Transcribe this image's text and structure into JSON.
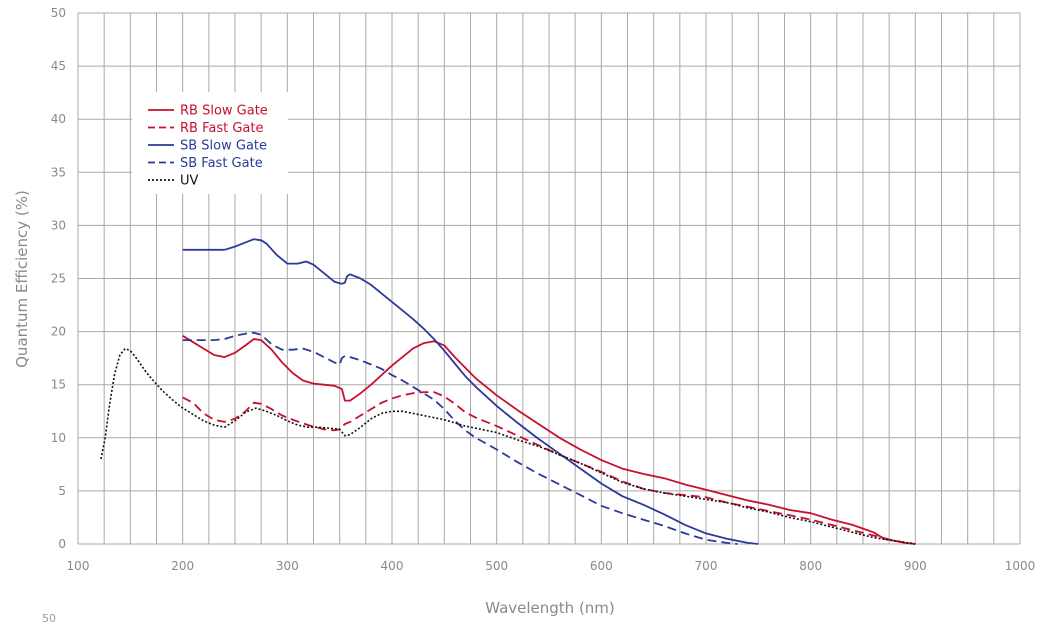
{
  "chart_data": {
    "type": "line",
    "xlabel": "Wavelength (nm)",
    "ylabel": "Quantum Efficiency  (%)",
    "xlim": [
      100,
      1000
    ],
    "ylim": [
      0,
      50
    ],
    "x_ticks": [
      "100",
      "200",
      "300",
      "400",
      "500",
      "600",
      "700",
      "800",
      "900",
      "1000"
    ],
    "y_ticks": [
      "0",
      "5",
      "10",
      "15",
      "20",
      "25",
      "30",
      "35",
      "40",
      "45",
      "50"
    ],
    "x_grid_step": 25,
    "y_grid_step": 5,
    "grid": true,
    "legend_position": "top-left",
    "series": [
      {
        "name": "RB Slow Gate",
        "color": "#c8102e",
        "style": "solid",
        "points": [
          [
            200,
            19.6
          ],
          [
            210,
            19.0
          ],
          [
            220,
            18.4
          ],
          [
            230,
            17.8
          ],
          [
            240,
            17.6
          ],
          [
            250,
            18.0
          ],
          [
            260,
            18.7
          ],
          [
            268,
            19.3
          ],
          [
            275,
            19.2
          ],
          [
            285,
            18.3
          ],
          [
            295,
            17.1
          ],
          [
            305,
            16.1
          ],
          [
            315,
            15.4
          ],
          [
            325,
            15.1
          ],
          [
            335,
            15.0
          ],
          [
            345,
            14.9
          ],
          [
            352,
            14.6
          ],
          [
            355,
            13.5
          ],
          [
            360,
            13.5
          ],
          [
            370,
            14.2
          ],
          [
            380,
            15.0
          ],
          [
            390,
            15.9
          ],
          [
            400,
            16.8
          ],
          [
            410,
            17.6
          ],
          [
            420,
            18.4
          ],
          [
            430,
            18.9
          ],
          [
            440,
            19.1
          ],
          [
            450,
            18.7
          ],
          [
            460,
            17.6
          ],
          [
            470,
            16.6
          ],
          [
            480,
            15.6
          ],
          [
            500,
            14.0
          ],
          [
            520,
            12.6
          ],
          [
            540,
            11.3
          ],
          [
            560,
            10.0
          ],
          [
            580,
            8.9
          ],
          [
            600,
            7.9
          ],
          [
            620,
            7.1
          ],
          [
            640,
            6.6
          ],
          [
            660,
            6.2
          ],
          [
            680,
            5.6
          ],
          [
            700,
            5.1
          ],
          [
            720,
            4.6
          ],
          [
            740,
            4.1
          ],
          [
            760,
            3.7
          ],
          [
            780,
            3.2
          ],
          [
            800,
            2.9
          ],
          [
            820,
            2.3
          ],
          [
            840,
            1.8
          ],
          [
            860,
            1.1
          ],
          [
            870,
            0.5
          ],
          [
            880,
            0.3
          ],
          [
            890,
            0.1
          ],
          [
            900,
            0.0
          ]
        ]
      },
      {
        "name": "RB Fast Gate",
        "color": "#c8102e",
        "style": "dashed",
        "points": [
          [
            200,
            13.8
          ],
          [
            210,
            13.3
          ],
          [
            220,
            12.3
          ],
          [
            230,
            11.7
          ],
          [
            240,
            11.5
          ],
          [
            250,
            11.8
          ],
          [
            260,
            12.5
          ],
          [
            268,
            13.3
          ],
          [
            275,
            13.2
          ],
          [
            285,
            12.7
          ],
          [
            295,
            12.1
          ],
          [
            305,
            11.7
          ],
          [
            320,
            11.2
          ],
          [
            335,
            10.8
          ],
          [
            345,
            10.7
          ],
          [
            350,
            10.8
          ],
          [
            355,
            11.3
          ],
          [
            360,
            11.5
          ],
          [
            370,
            12.1
          ],
          [
            380,
            12.7
          ],
          [
            390,
            13.3
          ],
          [
            400,
            13.7
          ],
          [
            410,
            14.0
          ],
          [
            420,
            14.2
          ],
          [
            430,
            14.3
          ],
          [
            440,
            14.3
          ],
          [
            450,
            13.9
          ],
          [
            460,
            13.2
          ],
          [
            470,
            12.4
          ],
          [
            480,
            11.9
          ],
          [
            500,
            11.1
          ],
          [
            520,
            10.2
          ],
          [
            540,
            9.3
          ],
          [
            560,
            8.4
          ],
          [
            580,
            7.6
          ],
          [
            600,
            6.8
          ],
          [
            620,
            5.9
          ],
          [
            640,
            5.2
          ],
          [
            660,
            4.8
          ],
          [
            680,
            4.6
          ],
          [
            700,
            4.4
          ],
          [
            720,
            3.9
          ],
          [
            740,
            3.5
          ],
          [
            760,
            3.1
          ],
          [
            780,
            2.7
          ],
          [
            800,
            2.3
          ],
          [
            820,
            1.8
          ],
          [
            840,
            1.3
          ],
          [
            860,
            0.8
          ],
          [
            880,
            0.3
          ],
          [
            900,
            0.0
          ]
        ]
      },
      {
        "name": "SB Slow Gate",
        "color": "#2b3a9a",
        "style": "solid",
        "points": [
          [
            200,
            27.7
          ],
          [
            210,
            27.7
          ],
          [
            220,
            27.7
          ],
          [
            230,
            27.7
          ],
          [
            240,
            27.7
          ],
          [
            250,
            28.0
          ],
          [
            260,
            28.4
          ],
          [
            268,
            28.7
          ],
          [
            275,
            28.6
          ],
          [
            280,
            28.3
          ],
          [
            290,
            27.2
          ],
          [
            300,
            26.4
          ],
          [
            310,
            26.4
          ],
          [
            318,
            26.6
          ],
          [
            325,
            26.3
          ],
          [
            335,
            25.5
          ],
          [
            345,
            24.7
          ],
          [
            352,
            24.5
          ],
          [
            355,
            24.6
          ],
          [
            357,
            25.2
          ],
          [
            360,
            25.4
          ],
          [
            370,
            25.0
          ],
          [
            380,
            24.4
          ],
          [
            390,
            23.6
          ],
          [
            400,
            22.8
          ],
          [
            410,
            22.0
          ],
          [
            420,
            21.2
          ],
          [
            430,
            20.3
          ],
          [
            440,
            19.3
          ],
          [
            450,
            18.2
          ],
          [
            460,
            17.0
          ],
          [
            470,
            15.8
          ],
          [
            480,
            14.8
          ],
          [
            500,
            13.0
          ],
          [
            520,
            11.4
          ],
          [
            540,
            9.9
          ],
          [
            560,
            8.5
          ],
          [
            580,
            7.1
          ],
          [
            600,
            5.7
          ],
          [
            620,
            4.5
          ],
          [
            640,
            3.7
          ],
          [
            660,
            2.8
          ],
          [
            680,
            1.8
          ],
          [
            700,
            1.0
          ],
          [
            720,
            0.5
          ],
          [
            740,
            0.1
          ],
          [
            750,
            0.0
          ]
        ]
      },
      {
        "name": "SB Fast Gate",
        "color": "#2b3a9a",
        "style": "dashed",
        "points": [
          [
            200,
            19.2
          ],
          [
            210,
            19.2
          ],
          [
            220,
            19.2
          ],
          [
            230,
            19.2
          ],
          [
            240,
            19.3
          ],
          [
            250,
            19.6
          ],
          [
            260,
            19.8
          ],
          [
            268,
            19.9
          ],
          [
            275,
            19.7
          ],
          [
            285,
            18.8
          ],
          [
            295,
            18.3
          ],
          [
            305,
            18.3
          ],
          [
            315,
            18.4
          ],
          [
            325,
            18.1
          ],
          [
            335,
            17.6
          ],
          [
            345,
            17.1
          ],
          [
            350,
            16.9
          ],
          [
            352,
            17.5
          ],
          [
            355,
            17.7
          ],
          [
            360,
            17.6
          ],
          [
            370,
            17.3
          ],
          [
            380,
            16.9
          ],
          [
            390,
            16.5
          ],
          [
            400,
            15.9
          ],
          [
            410,
            15.4
          ],
          [
            420,
            14.8
          ],
          [
            430,
            14.2
          ],
          [
            440,
            13.6
          ],
          [
            450,
            12.7
          ],
          [
            460,
            11.6
          ],
          [
            470,
            10.7
          ],
          [
            480,
            10.0
          ],
          [
            500,
            8.9
          ],
          [
            520,
            7.7
          ],
          [
            540,
            6.6
          ],
          [
            560,
            5.6
          ],
          [
            580,
            4.6
          ],
          [
            600,
            3.6
          ],
          [
            620,
            2.9
          ],
          [
            640,
            2.3
          ],
          [
            660,
            1.7
          ],
          [
            680,
            1.0
          ],
          [
            700,
            0.4
          ],
          [
            720,
            0.1
          ],
          [
            730,
            0.0
          ]
        ]
      },
      {
        "name": "UV",
        "color": "#111111",
        "style": "dotted",
        "points": [
          [
            122,
            8.0
          ],
          [
            126,
            10.0
          ],
          [
            130,
            13.0
          ],
          [
            135,
            16.0
          ],
          [
            140,
            17.8
          ],
          [
            145,
            18.4
          ],
          [
            150,
            18.2
          ],
          [
            155,
            17.6
          ],
          [
            160,
            16.9
          ],
          [
            165,
            16.2
          ],
          [
            170,
            15.6
          ],
          [
            180,
            14.5
          ],
          [
            190,
            13.6
          ],
          [
            200,
            12.8
          ],
          [
            210,
            12.2
          ],
          [
            220,
            11.6
          ],
          [
            230,
            11.2
          ],
          [
            240,
            11.0
          ],
          [
            250,
            11.6
          ],
          [
            260,
            12.4
          ],
          [
            270,
            12.8
          ],
          [
            280,
            12.5
          ],
          [
            290,
            12.1
          ],
          [
            300,
            11.6
          ],
          [
            310,
            11.2
          ],
          [
            320,
            11.0
          ],
          [
            330,
            11.0
          ],
          [
            340,
            10.9
          ],
          [
            350,
            10.8
          ],
          [
            355,
            10.2
          ],
          [
            360,
            10.3
          ],
          [
            370,
            11.0
          ],
          [
            380,
            11.8
          ],
          [
            390,
            12.3
          ],
          [
            400,
            12.5
          ],
          [
            410,
            12.5
          ],
          [
            420,
            12.3
          ],
          [
            430,
            12.1
          ],
          [
            440,
            11.9
          ],
          [
            450,
            11.7
          ],
          [
            460,
            11.4
          ],
          [
            470,
            11.1
          ],
          [
            480,
            10.9
          ],
          [
            500,
            10.5
          ],
          [
            520,
            9.8
          ],
          [
            540,
            9.2
          ],
          [
            560,
            8.4
          ],
          [
            580,
            7.6
          ],
          [
            600,
            6.7
          ],
          [
            620,
            5.8
          ],
          [
            640,
            5.2
          ],
          [
            660,
            4.8
          ],
          [
            680,
            4.5
          ],
          [
            700,
            4.2
          ],
          [
            720,
            3.9
          ],
          [
            740,
            3.4
          ],
          [
            760,
            3.0
          ],
          [
            780,
            2.5
          ],
          [
            800,
            2.1
          ],
          [
            820,
            1.6
          ],
          [
            840,
            1.1
          ],
          [
            860,
            0.6
          ],
          [
            880,
            0.3
          ],
          [
            900,
            0.0
          ]
        ]
      }
    ]
  },
  "stray_label": "50"
}
